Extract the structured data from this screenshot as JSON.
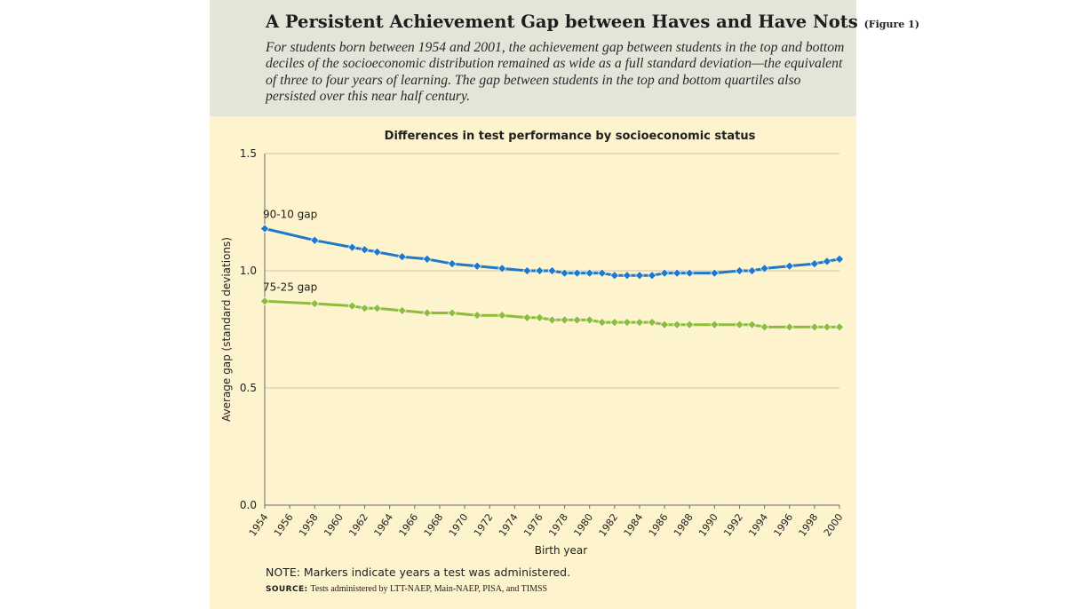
{
  "header": {
    "title": "A Persistent Achievement Gap between Haves and Have Nots",
    "figure_label": "(Figure 1)",
    "subtitle": "For students born between 1954 and 2001, the achievement gap between students in the top and bottom deciles of the socioeconomic distribution remained as wide as a full standard deviation—the equivalent of three to four years of learning. The gap between students in the top and bottom quartiles also persisted over this near half century."
  },
  "footer": {
    "note": "NOTE: Markers indicate years a test was administered.",
    "source_label": "SOURCE:",
    "source_text": "Tests administered by LTT-NAEP, Main-NAEP, PISA, and TIMSS"
  },
  "colors": {
    "series_90_10": "#1f78c8",
    "series_75_25": "#8dbd3a",
    "panel_bg": "#fdf3cc",
    "header_bg": "#e2e6d9"
  },
  "chart_data": {
    "type": "line",
    "title": "Differences in test performance by socioeconomic status",
    "xlabel": "Birth year",
    "ylabel": "Average gap (standard deviations)",
    "xlim": [
      1954,
      2000
    ],
    "ylim": [
      0,
      1.5
    ],
    "yticks": [
      "0.0",
      "0.5",
      "1.0",
      "1.5"
    ],
    "xticks": [
      "1954",
      "1956",
      "1958",
      "1960",
      "1962",
      "1964",
      "1966",
      "1968",
      "1970",
      "1972",
      "1974",
      "1976",
      "1978",
      "1980",
      "1982",
      "1984",
      "1986",
      "1988",
      "1990",
      "1992",
      "1994",
      "1996",
      "1998",
      "2000"
    ],
    "grid": true,
    "series": [
      {
        "name": "90-10 gap",
        "color": "#1f78c8",
        "x": [
          1954,
          1958,
          1961,
          1962,
          1963,
          1965,
          1967,
          1969,
          1971,
          1973,
          1975,
          1976,
          1977,
          1978,
          1979,
          1980,
          1981,
          1982,
          1983,
          1984,
          1985,
          1986,
          1987,
          1988,
          1990,
          1992,
          1993,
          1994,
          1996,
          1998,
          1999,
          2000
        ],
        "y": [
          1.18,
          1.13,
          1.1,
          1.09,
          1.08,
          1.06,
          1.05,
          1.03,
          1.02,
          1.01,
          1.0,
          1.0,
          1.0,
          0.99,
          0.99,
          0.99,
          0.99,
          0.98,
          0.98,
          0.98,
          0.98,
          0.99,
          0.99,
          0.99,
          0.99,
          1.0,
          1.0,
          1.01,
          1.02,
          1.03,
          1.04,
          1.05
        ]
      },
      {
        "name": "75-25 gap",
        "color": "#8dbd3a",
        "x": [
          1954,
          1958,
          1961,
          1962,
          1963,
          1965,
          1967,
          1969,
          1971,
          1973,
          1975,
          1976,
          1977,
          1978,
          1979,
          1980,
          1981,
          1982,
          1983,
          1984,
          1985,
          1986,
          1987,
          1988,
          1990,
          1992,
          1993,
          1994,
          1996,
          1998,
          1999,
          2000
        ],
        "y": [
          0.87,
          0.86,
          0.85,
          0.84,
          0.84,
          0.83,
          0.82,
          0.82,
          0.81,
          0.81,
          0.8,
          0.8,
          0.79,
          0.79,
          0.79,
          0.79,
          0.78,
          0.78,
          0.78,
          0.78,
          0.78,
          0.77,
          0.77,
          0.77,
          0.77,
          0.77,
          0.77,
          0.76,
          0.76,
          0.76,
          0.76,
          0.76
        ]
      }
    ]
  }
}
